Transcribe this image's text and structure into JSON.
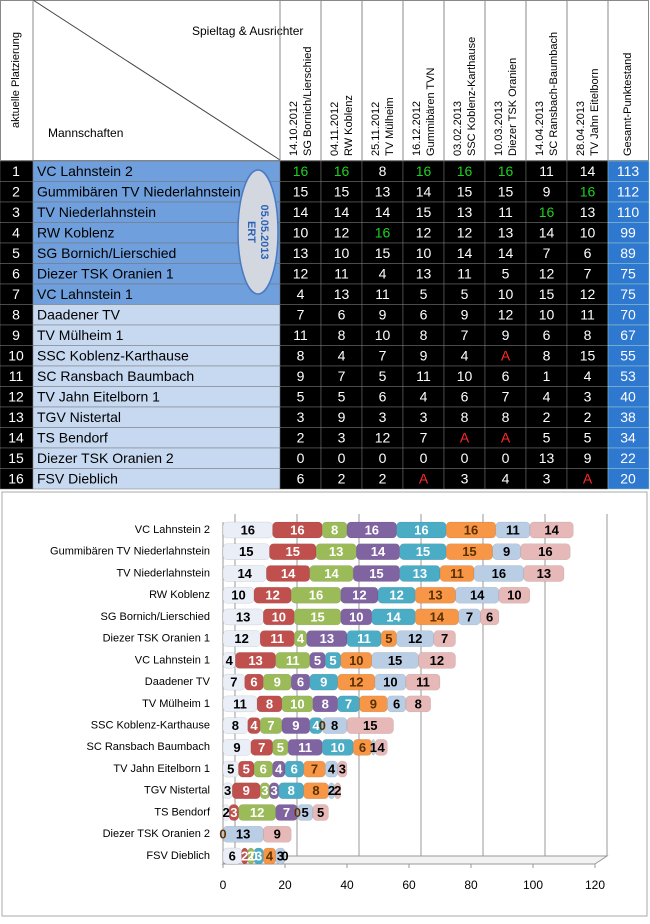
{
  "table": {
    "header": {
      "rank": "aktuelle Platzierung",
      "matchday": "Spieltag & Ausrichter",
      "teams": "Mannschaften",
      "columns": [
        {
          "date": "14.10.2012",
          "host": "SG Bornich/Lierschied"
        },
        {
          "date": "04.11.2012",
          "host": "RW Koblenz"
        },
        {
          "date": "25.11.2012",
          "host": "TV Mülheim"
        },
        {
          "date": "16.12.2012",
          "host": "Gummibären TVN"
        },
        {
          "date": "03.02.2013",
          "host": "SSC Koblenz-Karthause"
        },
        {
          "date": "10.03.2013",
          "host": "Diezer TSK Oranien"
        },
        {
          "date": "14.04.2013",
          "host": "SC Ransbach-Baumbach"
        },
        {
          "date": "28.04.2013",
          "host": "TV Jahn Eitelborn"
        }
      ],
      "total": "Gesamt-Punktestand"
    },
    "note": [
      "ERT",
      "05.05.2013"
    ],
    "rows": [
      [
        1,
        "VC Lahnstein 2",
        16,
        16,
        8,
        16,
        16,
        16,
        11,
        14,
        113
      ],
      [
        2,
        "Gummibären TV Niederlahnstein",
        15,
        15,
        13,
        14,
        15,
        15,
        9,
        16,
        112
      ],
      [
        3,
        "TV Niederlahnstein",
        14,
        14,
        14,
        15,
        13,
        11,
        16,
        13,
        110
      ],
      [
        4,
        "RW Koblenz",
        10,
        12,
        16,
        12,
        12,
        13,
        14,
        10,
        99
      ],
      [
        5,
        "SG Bornich/Lierschied",
        13,
        10,
        15,
        10,
        14,
        14,
        7,
        6,
        89
      ],
      [
        6,
        "Diezer TSK Oranien 1",
        12,
        11,
        4,
        13,
        11,
        5,
        12,
        7,
        75
      ],
      [
        7,
        "VC Lahnstein 1",
        4,
        13,
        11,
        5,
        5,
        10,
        15,
        12,
        75
      ],
      [
        8,
        "Daadener TV",
        7,
        6,
        9,
        6,
        9,
        12,
        10,
        11,
        70
      ],
      [
        9,
        "TV Mülheim 1",
        11,
        8,
        10,
        8,
        7,
        9,
        6,
        8,
        67
      ],
      [
        10,
        "SSC Koblenz-Karthause",
        8,
        4,
        7,
        9,
        4,
        "A",
        8,
        15,
        55
      ],
      [
        11,
        "SC Ransbach Baumbach",
        9,
        7,
        5,
        11,
        10,
        6,
        1,
        4,
        53
      ],
      [
        12,
        "TV Jahn Eitelborn 1",
        5,
        5,
        6,
        4,
        6,
        7,
        4,
        3,
        40
      ],
      [
        13,
        "TGV Nistertal",
        3,
        9,
        3,
        3,
        8,
        8,
        2,
        2,
        38
      ],
      [
        14,
        "TS Bendorf",
        2,
        3,
        12,
        7,
        "A",
        "A",
        5,
        5,
        34
      ],
      [
        15,
        "Diezer TSK Oranien 2",
        0,
        0,
        0,
        0,
        0,
        0,
        13,
        9,
        22
      ],
      [
        16,
        "FSV Dieblich",
        6,
        2,
        2,
        "A",
        3,
        4,
        3,
        "A",
        20
      ]
    ]
  },
  "chart_data": {
    "type": "bar",
    "orientation": "horizontal",
    "stacked": true,
    "categories": [
      "VC Lahnstein 2",
      "Gummibären TV  Niederlahnstein",
      "TV Niederlahnstein",
      "RW Koblenz",
      "SG Bornich/Lierschied",
      "Diezer TSK Oranien 1",
      "VC Lahnstein 1",
      "Daadener TV",
      "TV Mülheim 1",
      "SSC Koblenz-Karthause",
      "SC Ransbach  Baumbach",
      "TV Jahn Eitelborn 1",
      "TGV Nistertal",
      "TS Bendorf",
      "Diezer TSK Oranien 2",
      "FSV Dieblich"
    ],
    "series": [
      {
        "color": "#e9eef7",
        "values": [
          16,
          15,
          14,
          10,
          13,
          12,
          4,
          7,
          11,
          8,
          9,
          5,
          3,
          2,
          0,
          6
        ]
      },
      {
        "color": "#c0504d",
        "values": [
          16,
          15,
          14,
          12,
          10,
          11,
          13,
          6,
          8,
          4,
          7,
          5,
          9,
          3,
          0,
          2
        ]
      },
      {
        "color": "#9bbb59",
        "values": [
          8,
          13,
          14,
          16,
          15,
          4,
          11,
          9,
          10,
          7,
          5,
          6,
          3,
          12,
          0,
          2
        ]
      },
      {
        "color": "#8064a2",
        "values": [
          16,
          14,
          15,
          12,
          10,
          13,
          5,
          6,
          8,
          9,
          11,
          4,
          3,
          7,
          0,
          0
        ]
      },
      {
        "color": "#4bacc6",
        "values": [
          16,
          15,
          13,
          12,
          14,
          11,
          5,
          9,
          7,
          4,
          10,
          6,
          8,
          0,
          0,
          3
        ]
      },
      {
        "color": "#f79646",
        "values": [
          16,
          15,
          11,
          13,
          14,
          5,
          10,
          12,
          9,
          0,
          6,
          7,
          8,
          0,
          0,
          4
        ]
      },
      {
        "color": "#b9cde5",
        "values": [
          11,
          9,
          16,
          14,
          7,
          12,
          15,
          10,
          6,
          8,
          1,
          4,
          2,
          5,
          13,
          3
        ]
      },
      {
        "color": "#e6b9b8",
        "values": [
          14,
          16,
          13,
          10,
          6,
          7,
          12,
          11,
          8,
          15,
          4,
          3,
          2,
          5,
          9,
          0
        ]
      }
    ],
    "xlim": [
      0,
      120
    ],
    "xticks": [
      0,
      20,
      40,
      60,
      80,
      100,
      120
    ],
    "grid": true
  }
}
